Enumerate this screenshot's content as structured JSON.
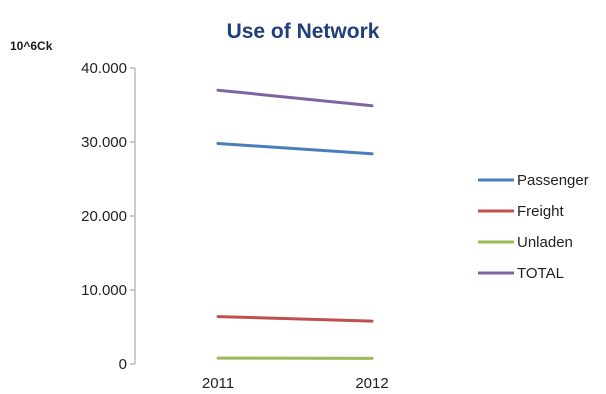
{
  "chart_data": {
    "type": "line",
    "title": "Use of Network",
    "unit_label": "10^6Ck",
    "xlabel": "",
    "ylabel": "",
    "categories": [
      "2011",
      "2012"
    ],
    "ylim": [
      0,
      40000
    ],
    "y_ticks": [
      0,
      10000,
      20000,
      30000,
      40000
    ],
    "y_tick_labels": [
      "0",
      "10.000",
      "20.000",
      "30.000",
      "40.000"
    ],
    "grid": false,
    "legend_position": "right",
    "series": [
      {
        "name": "Passenger",
        "color": "#4a7ebb",
        "values": [
          29800,
          28400
        ]
      },
      {
        "name": "Freight",
        "color": "#c0504d",
        "values": [
          6400,
          5800
        ]
      },
      {
        "name": "Unladen",
        "color": "#9bbb59",
        "values": [
          800,
          750
        ]
      },
      {
        "name": "TOTAL",
        "color": "#8064a2",
        "values": [
          37000,
          34900
        ]
      }
    ]
  }
}
